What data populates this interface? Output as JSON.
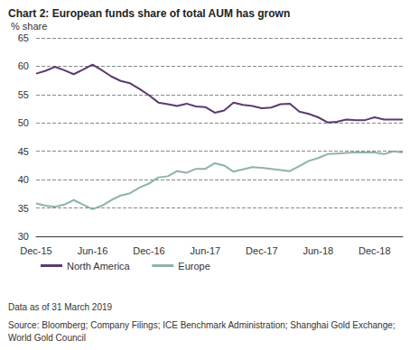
{
  "chart_data": {
    "type": "line",
    "title": "Chart 2: European funds share of total AUM has grown",
    "y_label": "% share",
    "notes": [
      "Data as of 31 March 2019",
      "Source: Bloomberg; Company Filings; ICE Benchmark Administration; Shanghai Gold Exchange; World Gold Council"
    ],
    "categories": [
      "Dec-15",
      null,
      null,
      null,
      null,
      null,
      "Jun-16",
      null,
      null,
      null,
      null,
      null,
      "Dec-16",
      null,
      null,
      null,
      null,
      null,
      "Jun-17",
      null,
      null,
      null,
      null,
      null,
      "Dec-17",
      null,
      null,
      null,
      null,
      null,
      "Jun-18",
      null,
      null,
      null,
      null,
      null,
      "Dec-18",
      null,
      null,
      null
    ],
    "series": [
      {
        "name": "North America",
        "color": "#5b3b6f",
        "values": [
          58.7,
          59.2,
          59.9,
          59.3,
          58.6,
          59.4,
          60.3,
          59.3,
          58.2,
          57.4,
          57.0,
          56.0,
          54.9,
          53.6,
          53.3,
          53.0,
          53.4,
          52.9,
          52.8,
          51.8,
          52.2,
          53.6,
          53.2,
          53.0,
          52.6,
          52.7,
          53.3,
          53.4,
          52.0,
          51.6,
          51.0,
          50.1,
          50.2,
          50.6,
          50.5,
          50.5,
          51.0,
          50.6,
          50.6,
          50.6
        ]
      },
      {
        "name": "Europe",
        "color": "#8fb3a6",
        "values": [
          35.8,
          35.4,
          35.2,
          35.6,
          36.4,
          35.6,
          34.8,
          35.4,
          36.4,
          37.2,
          37.6,
          38.6,
          39.3,
          40.4,
          40.6,
          41.5,
          41.2,
          41.9,
          41.9,
          42.9,
          42.5,
          41.4,
          41.8,
          42.2,
          42.1,
          41.9,
          41.7,
          41.5,
          42.4,
          43.3,
          43.8,
          44.5,
          44.6,
          44.7,
          44.8,
          44.8,
          44.8,
          44.5,
          45.0,
          44.8
        ]
      }
    ],
    "ylim": [
      30,
      65
    ],
    "yticks": [
      30,
      35,
      40,
      45,
      50,
      55,
      60,
      65
    ],
    "grid": true,
    "legend": "bottom"
  }
}
